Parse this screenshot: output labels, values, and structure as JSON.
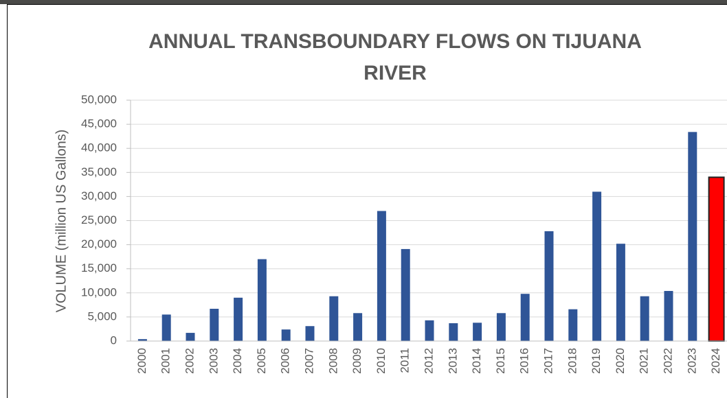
{
  "chart_data": {
    "type": "bar",
    "title": "ANNUAL TRANSBOUNDARY FLOWS ON TIJUANA RIVER",
    "y_label": "VOLUME (million US Gallons)",
    "categories": [
      "2000",
      "2001",
      "2002",
      "2003",
      "2004",
      "2005",
      "2006",
      "2007",
      "2008",
      "2009",
      "2010",
      "2011",
      "2012",
      "2013",
      "2014",
      "2015",
      "2016",
      "2017",
      "2018",
      "2019",
      "2020",
      "2021",
      "2022",
      "2023",
      "2024"
    ],
    "values": [
      400,
      5500,
      1700,
      6700,
      9000,
      17000,
      2400,
      3100,
      9300,
      5800,
      27000,
      19100,
      4300,
      3700,
      3800,
      5800,
      9800,
      22800,
      6600,
      31000,
      20200,
      9300,
      10400,
      43400,
      34000
    ],
    "color": "#2f5597",
    "colors": [
      "#2f5597",
      "#2f5597",
      "#2f5597",
      "#2f5597",
      "#2f5597",
      "#2f5597",
      "#2f5597",
      "#2f5597",
      "#2f5597",
      "#2f5597",
      "#2f5597",
      "#2f5597",
      "#2f5597",
      "#2f5597",
      "#2f5597",
      "#2f5597",
      "#2f5597",
      "#2f5597",
      "#2f5597",
      "#2f5597",
      "#2f5597",
      "#2f5597",
      "#2f5597",
      "#2f5597",
      "#ff0000"
    ],
    "ylim": [
      0,
      50000
    ],
    "yticks": [
      0,
      {
        "value": 5000,
        "label": "5,000"
      },
      {
        "value": 10000,
        "label": "10,000"
      },
      {
        "value": 15000,
        "label": "15,000"
      },
      {
        "value": 20000,
        "label": "20,000"
      },
      {
        "value": 25000,
        "label": "25,000"
      },
      {
        "value": 30000,
        "label": "30,000"
      },
      {
        "value": 35000,
        "label": "35,000"
      },
      {
        "value": 40000,
        "label": "40,000"
      },
      {
        "value": 45000,
        "label": "45,000"
      },
      {
        "value": 50000,
        "label": "50,000"
      }
    ],
    "grid": true
  }
}
